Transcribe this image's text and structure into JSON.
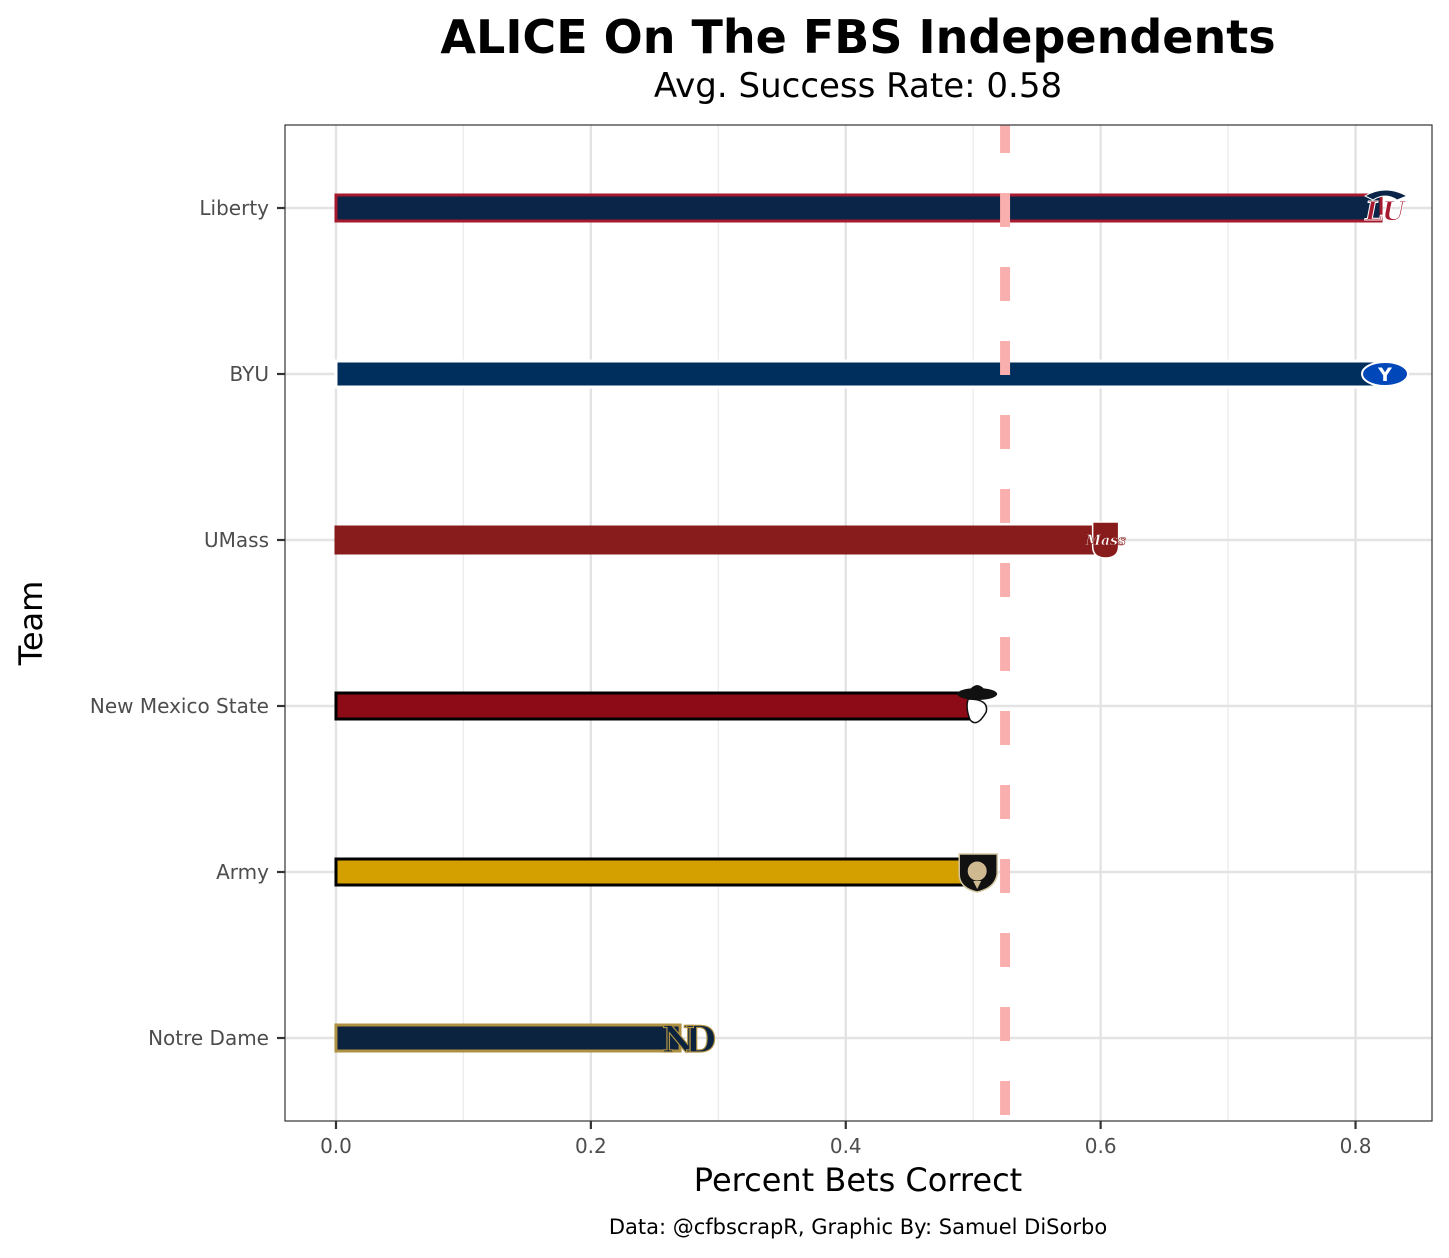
{
  "chart_data": {
    "type": "bar",
    "orientation": "horizontal",
    "title": "ALICE On The FBS Independents",
    "subtitle": "Avg. Success Rate: 0.58",
    "xlabel": "Percent Bets Correct",
    "ylabel": "Team",
    "caption": "Data: @cfbscrapR, Graphic By: Samuel DiSorbo",
    "xlim": [
      -0.04,
      0.86
    ],
    "xticks": [
      0.0,
      0.2,
      0.4,
      0.6,
      0.8
    ],
    "xtick_labels": [
      "0.0",
      "0.2",
      "0.4",
      "0.6",
      "0.8"
    ],
    "categories": [
      "Liberty",
      "BYU",
      "UMass",
      "New Mexico State",
      "Army",
      "Notre Dame"
    ],
    "values": [
      0.82,
      0.82,
      0.6,
      0.5,
      0.5,
      0.27
    ],
    "fill_colors": [
      "#0A2547",
      "#002E5D",
      "#881C1C",
      "#8C0B16",
      "#D4A000",
      "#0C2340"
    ],
    "outline_colors": [
      "#A6192E",
      "#FFFFFF",
      "#881C1C",
      "#000000",
      "#000000",
      "#AE9142"
    ],
    "logos": [
      "LU",
      "Y",
      "Mass",
      "Pistol Pete",
      "Black Knight",
      "ND"
    ],
    "reference_line": {
      "value": 0.525,
      "color": "#FAAFAF",
      "style": "dashed"
    },
    "grid": true
  }
}
